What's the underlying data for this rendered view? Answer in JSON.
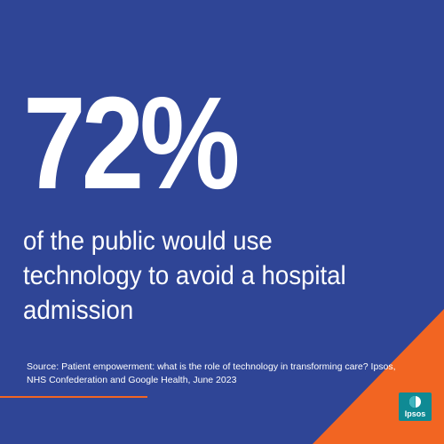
{
  "statistic": "72%",
  "description": "of the public would use technology to avoid a hospital admission",
  "source": "Source: Patient empowerment: what is the role of technology in transforming care? Ipsos, NHS Confederation and Google Health, June 2023",
  "logo": {
    "text": "Ipsos",
    "icon": "ipsos-logo"
  },
  "colors": {
    "background": "#2f4596",
    "accent": "#f26522",
    "logo": "#0f8a94",
    "text": "#ffffff"
  }
}
